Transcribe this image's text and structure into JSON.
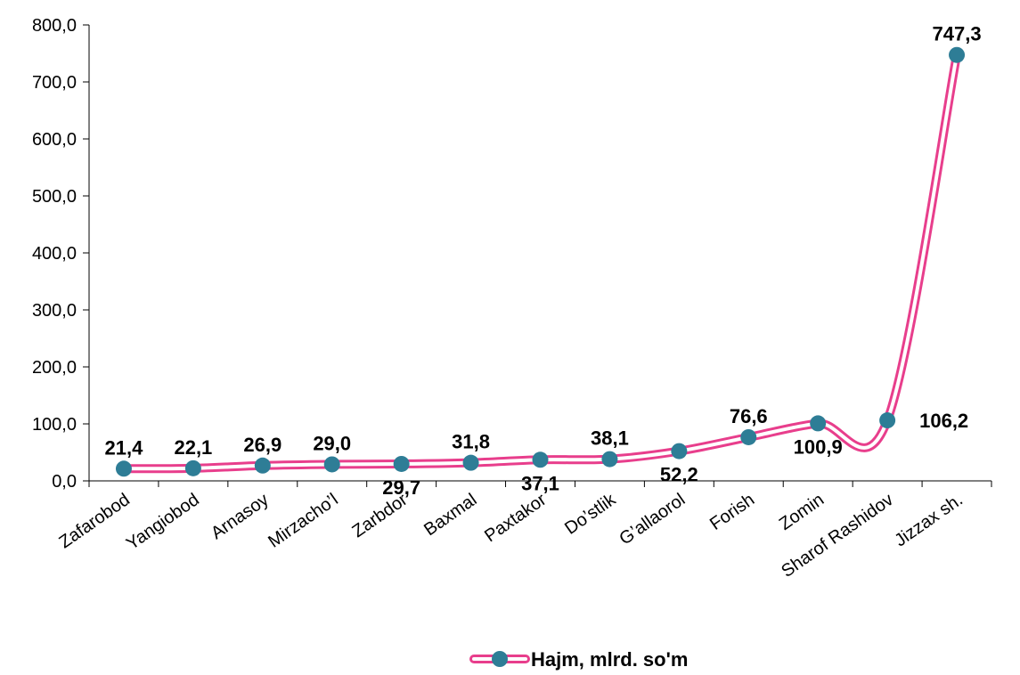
{
  "chart_data": {
    "type": "line",
    "categories": [
      "Zafarobod",
      "Yangiobod",
      "Arnasoy",
      "Mirzacho’l",
      "Zarbdor",
      "Baxmal",
      "Paxtakor",
      "Do’stlik",
      "G’allaorol",
      "Forish",
      "Zomin",
      "Sharof Rashidov",
      "Jizzax sh."
    ],
    "series": [
      {
        "name": "Hajm, mlrd. so'm",
        "values": [
          21.4,
          22.1,
          26.9,
          29.0,
          29.7,
          31.8,
          37.1,
          38.1,
          52.2,
          76.6,
          100.9,
          106.2,
          747.3
        ],
        "labels": [
          "21,4",
          "22,1",
          "26,9",
          "29,0",
          "29,7",
          "31,8",
          "37,1",
          "38,1",
          "52,2",
          "76,6",
          "100,9",
          "106,2",
          "747,3"
        ],
        "label_side": [
          "above",
          "above",
          "above",
          "above",
          "below",
          "above",
          "below",
          "above",
          "below",
          "above",
          "below",
          "right",
          "above"
        ],
        "color": "#e83e8c",
        "marker_color": "#2e7d96"
      }
    ],
    "y_ticks": [
      "0,0",
      "100,0",
      "200,0",
      "300,0",
      "400,0",
      "500,0",
      "600,0",
      "700,0",
      "800,0"
    ],
    "ylim": [
      0,
      800
    ],
    "grid": false,
    "legend_position": "bottom"
  }
}
